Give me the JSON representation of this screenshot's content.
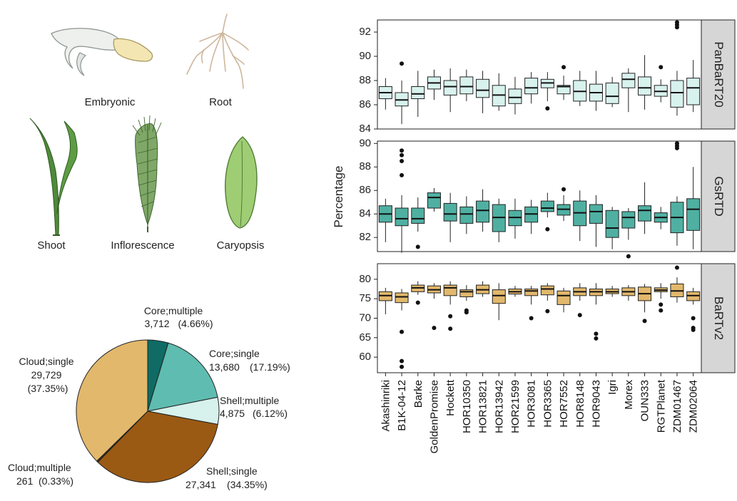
{
  "tissues": [
    {
      "name": "Embryonic",
      "icon": "embryo-icon"
    },
    {
      "name": "Root",
      "icon": "root-icon"
    },
    {
      "name": "Shoot",
      "icon": "shoot-icon"
    },
    {
      "name": "Inflorescence",
      "icon": "inflorescence-icon"
    },
    {
      "name": "Caryopsis",
      "icon": "caryopsis-icon"
    }
  ],
  "chart_data": [
    {
      "type": "pie",
      "title": "",
      "slices": [
        {
          "label": "Core;multiple",
          "count": "3,712",
          "pct": "(4.66%)",
          "value": 4.66,
          "color": "#0f6b64"
        },
        {
          "label": "Core;single",
          "count": "13,680",
          "pct": "(17.19%)",
          "value": 17.19,
          "color": "#5fbcb0"
        },
        {
          "label": "Shell;multiple",
          "count": "4,875",
          "pct": "(6.12%)",
          "value": 6.12,
          "color": "#d7f1ec"
        },
        {
          "label": "Shell;single",
          "count": "27,341",
          "pct": "(34.35%)",
          "value": 34.35,
          "color": "#9a5a14"
        },
        {
          "label": "Cloud;multiple",
          "count": "261",
          "pct": "(0.33%)",
          "value": 0.33,
          "color": "#3a2a0e"
        },
        {
          "label": "Cloud;single",
          "count": "29,729",
          "pct": "(37.35%)",
          "value": 37.35,
          "color": "#e2b86c"
        }
      ]
    },
    {
      "type": "box",
      "ylabel": "Percentage",
      "categories": [
        "Akashinriki",
        "B1K-04-12",
        "Barke",
        "GoldenPromise",
        "Hockett",
        "HOR10350",
        "HOR13821",
        "HOR13942",
        "HOR21599",
        "HOR3081",
        "HOR3365",
        "HOR7552",
        "HOR8148",
        "HOR9043",
        "Igri",
        "Morex",
        "OUN333",
        "RGTPlanet",
        "ZDM01467",
        "ZDM02064"
      ],
      "panels": [
        {
          "name": "PanBaRT20",
          "color": "#d8f2ee",
          "ylim": [
            84,
            93
          ],
          "yticks": [
            84,
            86,
            88,
            90,
            92
          ],
          "boxes": [
            [
              85.6,
              86.5,
              87.0,
              87.5,
              88.2
            ],
            [
              84.4,
              85.9,
              86.4,
              87.0,
              88.0
            ],
            [
              85.0,
              86.5,
              86.9,
              87.5,
              88.8
            ],
            [
              86.4,
              87.3,
              87.8,
              88.3,
              88.9
            ],
            [
              85.4,
              86.8,
              87.5,
              88.0,
              89.0
            ],
            [
              86.3,
              86.9,
              87.5,
              88.3,
              88.9
            ],
            [
              85.3,
              86.6,
              87.2,
              88.1,
              88.8
            ],
            [
              85.5,
              85.9,
              86.8,
              87.6,
              88.6
            ],
            [
              85.2,
              86.1,
              86.6,
              87.3,
              88.3
            ],
            [
              86.1,
              86.9,
              87.4,
              88.2,
              88.7
            ],
            [
              86.3,
              87.4,
              87.8,
              88.1,
              88.7
            ],
            [
              86.4,
              86.9,
              87.5,
              87.6,
              88.4
            ],
            [
              85.9,
              86.3,
              87.1,
              88.0,
              88.8
            ],
            [
              85.5,
              86.3,
              87.0,
              87.7,
              88.8
            ],
            [
              85.8,
              86.1,
              86.7,
              87.8,
              88.3
            ],
            [
              85.4,
              87.4,
              88.1,
              88.6,
              89.0
            ],
            [
              85.6,
              86.8,
              87.4,
              88.3,
              90.1
            ],
            [
              86.2,
              86.7,
              87.1,
              87.6,
              88.1
            ],
            [
              85.1,
              85.8,
              87.0,
              88.0,
              88.8
            ],
            [
              85.4,
              86.0,
              87.4,
              88.2,
              89.7
            ]
          ],
          "outliers": [
            {
              "i": 1,
              "v": [
                89.4
              ]
            },
            {
              "i": 11,
              "v": [
                89.1
              ]
            },
            {
              "i": 10,
              "v": [
                85.7
              ]
            },
            {
              "i": 17,
              "v": [
                89.1
              ]
            },
            {
              "i": 18,
              "v": [
                92.4,
                92.6,
                92.8
              ]
            }
          ]
        },
        {
          "name": "GsRTD",
          "color": "#4fb0a2",
          "ylim": [
            80.8,
            90.2
          ],
          "yticks": [
            82,
            84,
            86,
            88,
            90
          ],
          "boxes": [
            [
              81.6,
              83.3,
              84.0,
              84.7,
              85.3
            ],
            [
              80.7,
              83.0,
              83.6,
              84.5,
              85.6
            ],
            [
              82.5,
              83.2,
              83.6,
              84.5,
              85.4
            ],
            [
              84.2,
              84.5,
              85.4,
              85.8,
              86.2
            ],
            [
              81.6,
              83.4,
              84.0,
              84.9,
              85.8
            ],
            [
              82.3,
              83.2,
              84.0,
              84.6,
              85.5
            ],
            [
              82.5,
              83.3,
              84.3,
              85.1,
              86.1
            ],
            [
              81.6,
              82.5,
              83.7,
              84.8,
              85.3
            ],
            [
              81.9,
              83.0,
              83.7,
              84.3,
              85.3
            ],
            [
              82.3,
              83.3,
              84.0,
              84.6,
              85.2
            ],
            [
              83.7,
              84.2,
              84.5,
              85.1,
              85.8
            ],
            [
              83.4,
              83.9,
              84.4,
              84.8,
              85.6
            ],
            [
              81.7,
              83.0,
              84.1,
              85.1,
              86.0
            ],
            [
              81.2,
              83.2,
              84.2,
              84.8,
              85.6
            ],
            [
              81.0,
              82.0,
              82.8,
              84.3,
              84.6
            ],
            [
              81.8,
              82.8,
              83.7,
              84.2,
              84.5
            ],
            [
              82.3,
              83.4,
              84.3,
              84.7,
              86.7
            ],
            [
              82.7,
              83.3,
              83.7,
              84.1,
              84.6
            ],
            [
              81.3,
              82.4,
              83.7,
              85.0,
              85.5
            ],
            [
              81.0,
              82.6,
              84.4,
              85.3,
              88.0
            ]
          ],
          "outliers": [
            {
              "i": 1,
              "v": [
                87.3,
                88.5,
                89.0,
                89.4
              ]
            },
            {
              "i": 2,
              "v": [
                81.2
              ]
            },
            {
              "i": 10,
              "v": [
                82.7
              ]
            },
            {
              "i": 11,
              "v": [
                86.1
              ]
            },
            {
              "i": 15,
              "v": [
                80.4
              ]
            },
            {
              "i": 18,
              "v": [
                89.6,
                89.8,
                90.0
              ]
            }
          ]
        },
        {
          "name": "BaRTv2",
          "color": "#e2b86c",
          "ylim": [
            56,
            84
          ],
          "yticks": [
            60,
            65,
            70,
            75,
            80
          ],
          "boxes": [
            [
              71.0,
              74.5,
              75.8,
              76.8,
              77.8
            ],
            [
              72.0,
              74.0,
              75.5,
              76.5,
              77.5
            ],
            [
              76.0,
              76.8,
              77.8,
              78.5,
              79.5
            ],
            [
              75.0,
              76.5,
              77.3,
              78.3,
              79.0
            ],
            [
              73.5,
              75.8,
              77.8,
              78.5,
              79.5
            ],
            [
              74.5,
              75.5,
              76.8,
              77.3,
              78.5
            ],
            [
              75.5,
              76.3,
              77.3,
              78.5,
              79.5
            ],
            [
              69.5,
              73.8,
              75.8,
              77.3,
              79.0
            ],
            [
              75.5,
              76.2,
              76.8,
              77.5,
              78.3
            ],
            [
              73.5,
              75.8,
              77.0,
              77.5,
              78.3
            ],
            [
              74.5,
              76.0,
              77.5,
              78.3,
              79.0
            ],
            [
              71.5,
              73.5,
              75.8,
              77.0,
              77.8
            ],
            [
              74.5,
              75.8,
              76.8,
              77.8,
              79.0
            ],
            [
              73.5,
              75.8,
              76.8,
              77.5,
              79.0
            ],
            [
              75.5,
              76.3,
              76.8,
              77.5,
              78.3
            ],
            [
              74.5,
              75.8,
              76.8,
              77.8,
              78.5
            ],
            [
              71.5,
              74.5,
              76.3,
              78.0,
              78.8
            ],
            [
              75.0,
              76.8,
              77.2,
              77.8,
              79.0
            ],
            [
              74.0,
              75.5,
              77.0,
              78.8,
              80.5
            ],
            [
              73.5,
              74.5,
              75.8,
              76.8,
              77.8
            ]
          ],
          "outliers": [
            {
              "i": 1,
              "v": [
                66.5,
                59.0,
                57.5
              ]
            },
            {
              "i": 2,
              "v": [
                74.0
              ]
            },
            {
              "i": 3,
              "v": [
                67.5
              ]
            },
            {
              "i": 4,
              "v": [
                70.5,
                67.3
              ]
            },
            {
              "i": 5,
              "v": [
                71.5,
                72.0
              ]
            },
            {
              "i": 9,
              "v": [
                70.0
              ]
            },
            {
              "i": 10,
              "v": [
                71.8
              ]
            },
            {
              "i": 12,
              "v": [
                70.8
              ]
            },
            {
              "i": 13,
              "v": [
                66.0,
                64.8
              ]
            },
            {
              "i": 16,
              "v": [
                69.3
              ]
            },
            {
              "i": 17,
              "v": [
                73.5,
                72.0
              ]
            },
            {
              "i": 18,
              "v": [
                83.0
              ]
            },
            {
              "i": 19,
              "v": [
                70.0,
                67.5,
                67.0
              ]
            }
          ]
        }
      ]
    }
  ]
}
